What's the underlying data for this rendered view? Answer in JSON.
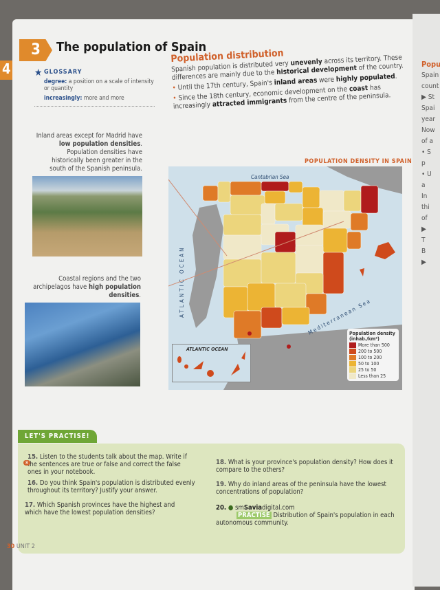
{
  "section": {
    "number": "3",
    "prev_number": "4",
    "title": "The population of Spain"
  },
  "glossary": {
    "heading": "GLOSSARY",
    "items": [
      {
        "term": "degree:",
        "def": "a position on a scale of intensity or quantity"
      },
      {
        "term": "increasingly:",
        "def": "more and more"
      }
    ]
  },
  "distribution": {
    "heading": "Population distribution",
    "intro_1": "Spanish population is distributed very ",
    "intro_b1": "unevenly",
    "intro_2": " across its territory. These differences are mainly due to the ",
    "intro_b2": "historical development",
    "intro_3": " of the country.",
    "bullet1_1": "Until the 17th century, Spain's ",
    "bullet1_b1": "inland areas",
    "bullet1_2": " were ",
    "bullet1_b2": "highly populated",
    "bullet2_1": "Since the 18th century, economic development on the ",
    "bullet2_b1": "coast",
    "bullet2_2": " has increasingly ",
    "bullet2_b2": "attracted immigrants",
    "bullet2_3": " from the centre of the peninsula."
  },
  "captions": {
    "inland_1": "Inland areas except for Madrid have ",
    "inland_b": "low population densities",
    "inland_2": ". Population densities have historically been greater in the south of the Spanish peninsula.",
    "coastal_1": "Coastal regions and the two archipelagos have ",
    "coastal_b": "high population densities",
    "coastal_2": "."
  },
  "map": {
    "title": "POPULATION DENSITY IN SPAIN",
    "labels": {
      "cantabrian": "Cantabrian Sea",
      "atlantic": "ATLANTIC OCEAN",
      "mediterranean": "Mediterranean Sea",
      "inset": "ATLANTIC OCEAN"
    },
    "legend": {
      "title": "Population density (inhab./km²)",
      "items": [
        {
          "label": "More than 500",
          "color": "#b01c1c"
        },
        {
          "label": "200 to 500",
          "color": "#cf4a1c"
        },
        {
          "label": "100 to 200",
          "color": "#df7a27"
        },
        {
          "label": "50 to 100",
          "color": "#ecb434"
        },
        {
          "label": "25 to 50",
          "color": "#ecd57c"
        },
        {
          "label": "Less than 25",
          "color": "#f0e8c8"
        }
      ]
    }
  },
  "practise": {
    "heading": "LET'S PRACTISE!",
    "audio_track": "8",
    "questions": [
      {
        "n": "15.",
        "text": "Listen to the students talk about the map. Write if the sentences are true or false and correct the false ones in your notebook."
      },
      {
        "n": "16.",
        "text": "Do you think Spain's population is distributed evenly throughout its territory? Justify your answer."
      },
      {
        "n": "17.",
        "text": "Which Spanish provinces have the highest and which have the lowest population densities?"
      },
      {
        "n": "18.",
        "text": "What is your province's population density? How does it compare to the others?"
      },
      {
        "n": "19.",
        "text": "Why do inland areas of the peninsula have the lowest concentrations of population?"
      }
    ],
    "q20": {
      "n": "20.",
      "brand_a": "sm",
      "brand_b": "Savia",
      "brand_c": "digital.com",
      "tag": "PRACTISE",
      "text": "Distribution of Spain's population in each autonomous community."
    }
  },
  "footer": {
    "page": "30",
    "unit": "UNIT 2"
  },
  "right_page": {
    "lines": [
      "Popu",
      "Spain",
      "count",
      "▶ St",
      "Spai",
      "year",
      "Now",
      "of a",
      "• S",
      "p",
      "• U",
      "a",
      "In",
      "thi",
      "of",
      "▶",
      "T",
      "B",
      "▶"
    ]
  }
}
